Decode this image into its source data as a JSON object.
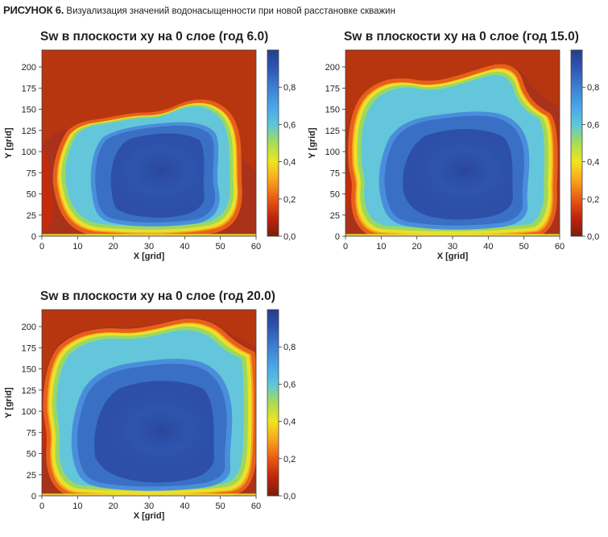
{
  "figure": {
    "label": "РИСУНОК 6.",
    "caption": "Визуализация значений водонасыщенности при новой расстановке скважин"
  },
  "colormap": [
    "#7a1e0a",
    "#c0250e",
    "#e85a13",
    "#f7a41c",
    "#f2e41e",
    "#a8dc56",
    "#5cc7dc",
    "#4aa3e8",
    "#3d7fd1",
    "#2e58b3",
    "#253d8d"
  ],
  "chart_data": [
    {
      "type": "heatmap",
      "title": "Sw в плоскости xy на 0 слое (год 6.0)",
      "xlabel": "X [grid]",
      "ylabel": "Y [grid]",
      "xlim": [
        0,
        60
      ],
      "ylim": [
        0,
        220
      ],
      "xticks": [
        "0",
        "10",
        "20",
        "30",
        "40",
        "50",
        "60"
      ],
      "yticks": [
        "0",
        "25",
        "50",
        "75",
        "100",
        "125",
        "150",
        "175",
        "200"
      ],
      "colorbar": {
        "range": [
          0,
          1.0
        ],
        "ticks": [
          "0,0",
          "0,2",
          "0,4",
          "0,6",
          "0,8"
        ]
      },
      "year": 6.0
    },
    {
      "type": "heatmap",
      "title": "Sw в плоскости xy на 0 слое (год 15.0)",
      "xlabel": "X [grid]",
      "ylabel": "Y [grid]",
      "xlim": [
        0,
        60
      ],
      "ylim": [
        0,
        220
      ],
      "xticks": [
        "0",
        "10",
        "20",
        "30",
        "40",
        "50",
        "60"
      ],
      "yticks": [
        "0",
        "25",
        "50",
        "75",
        "100",
        "125",
        "150",
        "175",
        "200"
      ],
      "colorbar": {
        "range": [
          0,
          1.0
        ],
        "ticks": [
          "0,0",
          "0,2",
          "0,4",
          "0,6",
          "0,8"
        ]
      },
      "year": 15.0
    },
    {
      "type": "heatmap",
      "title": "Sw в плоскости xy на 0 слое (год 20.0)",
      "xlabel": "X [grid]",
      "ylabel": "Y [grid]",
      "xlim": [
        0,
        60
      ],
      "ylim": [
        0,
        220
      ],
      "xticks": [
        "0",
        "10",
        "20",
        "30",
        "40",
        "50",
        "60"
      ],
      "yticks": [
        "0",
        "25",
        "50",
        "75",
        "100",
        "125",
        "150",
        "175",
        "200"
      ],
      "colorbar": {
        "range": [
          0,
          1.0
        ],
        "ticks": [
          "0,0",
          "0,2",
          "0,4",
          "0,6",
          "0,8"
        ]
      },
      "year": 20.0
    }
  ]
}
